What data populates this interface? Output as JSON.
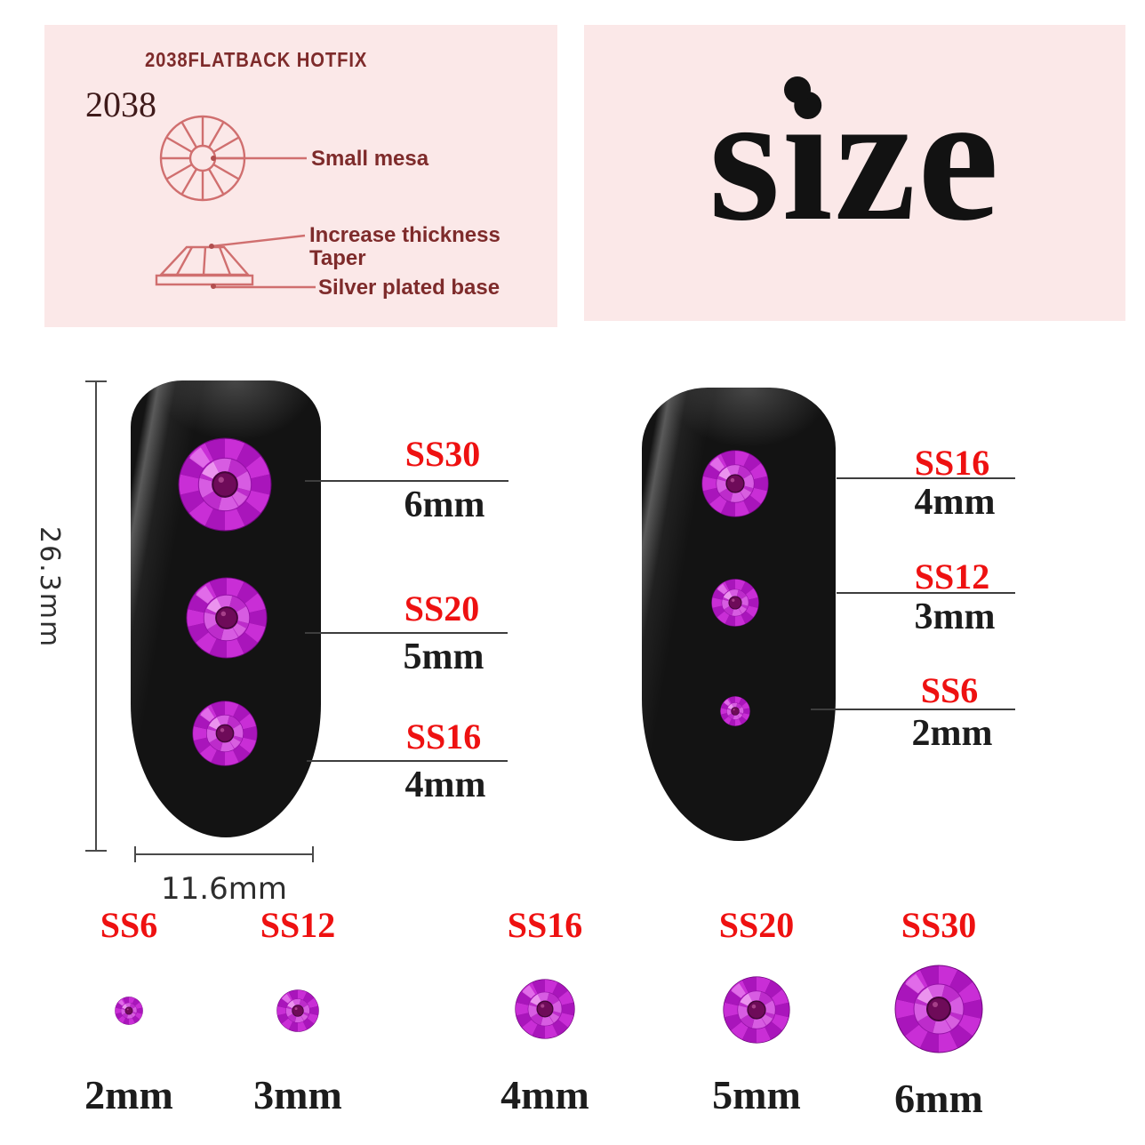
{
  "spec_panel": {
    "title": "2038FLATBACK HOTFIX",
    "model": "2038",
    "callouts": {
      "mesa": "Small mesa",
      "thickness": "Increase thickness",
      "taper": "Taper",
      "base": "Silver plated base"
    }
  },
  "size_panel": {
    "word": "size"
  },
  "dimensions": {
    "height_label": "26.3mm",
    "width_label": "11.6mm"
  },
  "left_nail": {
    "callouts": [
      {
        "ss": "SS30",
        "mm": "6mm"
      },
      {
        "ss": "SS20",
        "mm": "5mm"
      },
      {
        "ss": "SS16",
        "mm": "4mm"
      }
    ]
  },
  "right_nail": {
    "callouts": [
      {
        "ss": "SS16",
        "mm": "4mm"
      },
      {
        "ss": "SS12",
        "mm": "3mm"
      },
      {
        "ss": "SS6",
        "mm": "2mm"
      }
    ]
  },
  "size_chart": {
    "items": [
      {
        "ss": "SS6",
        "mm": "2mm"
      },
      {
        "ss": "SS12",
        "mm": "3mm"
      },
      {
        "ss": "SS16",
        "mm": "4mm"
      },
      {
        "ss": "SS20",
        "mm": "5mm"
      },
      {
        "ss": "SS30",
        "mm": "6mm"
      }
    ]
  },
  "colors": {
    "panel_pink": "#fbe8e8",
    "label_red": "#ee1111",
    "diagram_line": "#d06f6f",
    "diagram_text": "#7e2b2b",
    "stone_magenta": "#c92ed6",
    "nail_black": "#131313"
  }
}
